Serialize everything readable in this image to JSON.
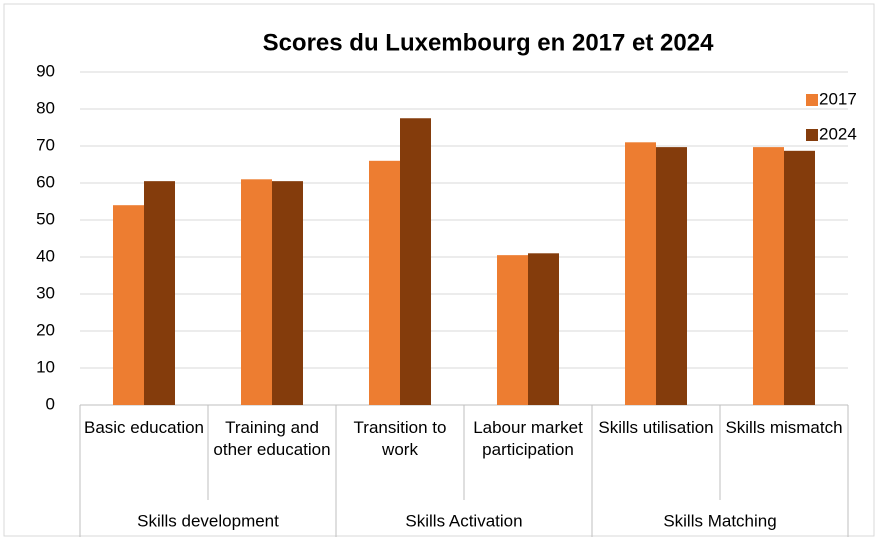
{
  "chart_data": {
    "type": "bar",
    "title": "Scores du Luxembourg en 2017 et 2024",
    "groups": [
      {
        "name": "Skills development",
        "categories": [
          "Basic education",
          "Training and other education"
        ]
      },
      {
        "name": "Skills Activation",
        "categories": [
          "Transition to work",
          "Labour market participation"
        ]
      },
      {
        "name": "Skills Matching",
        "categories": [
          "Skills utilisation",
          "Skills mismatch"
        ]
      }
    ],
    "series": [
      {
        "name": "2017",
        "color": "#ed7d31",
        "values": [
          54,
          61,
          66,
          40.5,
          71,
          69.7
        ]
      },
      {
        "name": "2024",
        "color": "#843c0c",
        "values": [
          60.5,
          60.5,
          77.5,
          41,
          69.7,
          68.7
        ]
      }
    ],
    "ylim": [
      0,
      90
    ],
    "yticks": [
      0,
      10,
      20,
      30,
      40,
      50,
      60,
      70,
      80,
      90
    ],
    "grid": true,
    "legend": "top-right"
  }
}
